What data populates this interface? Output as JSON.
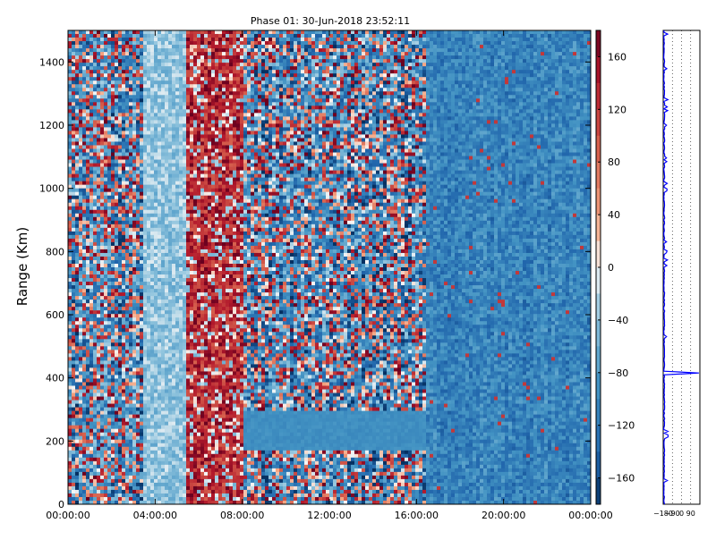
{
  "chart_data": {
    "type": "heatmap",
    "title": "Phase 01: 30-Jun-2018 23:52:11",
    "ylabel": "Range (Km)",
    "xlabel": "",
    "x_range": [
      "00:00:00",
      "24:00:00"
    ],
    "ylim": [
      0,
      1500
    ],
    "x_ticks": [
      "00:00:00",
      "04:00:00",
      "08:00:00",
      "12:00:00",
      "16:00:00",
      "20:00:00",
      "00:00:00"
    ],
    "y_ticks": [
      0,
      200,
      400,
      600,
      800,
      1000,
      1200,
      1400
    ],
    "colorbar": {
      "colormap": "RdBu_r",
      "range": [
        -180,
        180
      ],
      "ticks": [
        160,
        120,
        80,
        40,
        0,
        -40,
        -80,
        -120,
        -160
      ],
      "tick_labels": [
        "160",
        "120",
        "80",
        "40",
        "0",
        "−40",
        "−80",
        "−120",
        "−160"
      ]
    },
    "description_bands": [
      {
        "time_start": 0.0,
        "time_end": 3.5,
        "phase_range": [
          -180,
          180
        ],
        "pattern": "noisy mixed"
      },
      {
        "time_start": 3.5,
        "time_end": 5.5,
        "phase_range": [
          -80,
          0
        ],
        "pattern": "light blue"
      },
      {
        "time_start": 5.5,
        "time_end": 8.0,
        "phase_range": [
          40,
          180
        ],
        "pattern": "red dominant"
      },
      {
        "time_start": 8.0,
        "time_end": 16.5,
        "phase_range": [
          -180,
          180
        ],
        "pattern": "noisy mixed, uniform band near 200 km"
      },
      {
        "time_start": 16.5,
        "time_end": 24.0,
        "phase_range": [
          -160,
          -60
        ],
        "pattern": "smooth blue"
      }
    ],
    "side_profile": {
      "x_ticks": [
        "−180",
        "−90",
        "0",
        "90"
      ],
      "xlim": [
        -180,
        180
      ],
      "ylim": [
        0,
        1500
      ],
      "spike_at_range": 415,
      "spike_value": 170
    }
  }
}
